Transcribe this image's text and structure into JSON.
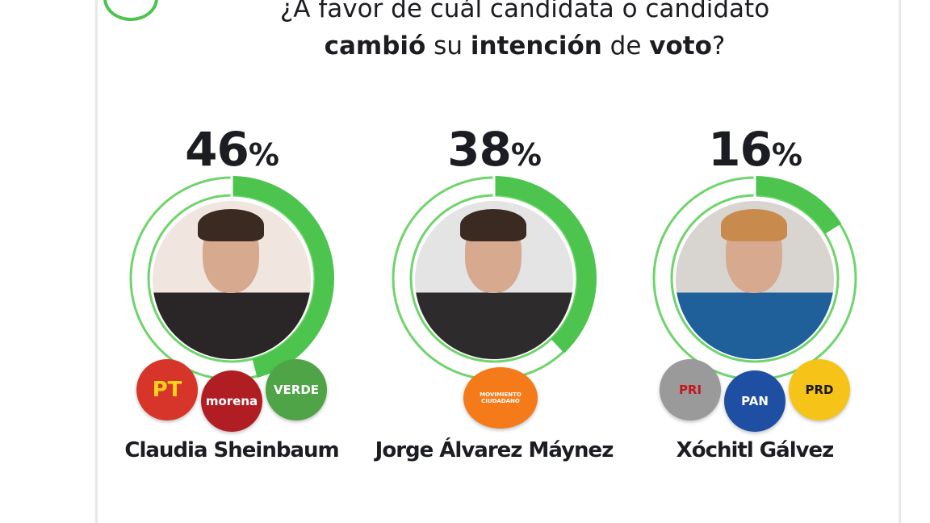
{
  "title": {
    "line1": "¿A favor de cuál candidata o candidato",
    "line2_parts": [
      "cambió",
      " su ",
      "intención",
      " de ",
      "voto",
      "?"
    ]
  },
  "colors": {
    "accent": "#4cc44e",
    "ring_light": "#6fd46b",
    "text": "#1c1d22"
  },
  "chart_data": {
    "type": "pie",
    "title": "¿A favor de cuál candidata o candidato cambió su intención de voto?",
    "categories": [
      "Claudia Sheinbaum",
      "Jorge Álvarez Máynez",
      "Xóchitl Gálvez"
    ],
    "values": [
      46,
      38,
      16
    ],
    "unit": "%"
  },
  "candidates": [
    {
      "name": "Claudia Sheinbaum",
      "value": "46",
      "pct_symbol": "%",
      "logos": [
        {
          "label": "PT",
          "color": "#d8352a",
          "text_color": "#f7d21c"
        },
        {
          "label": "morena",
          "color": "#b01e24",
          "text_color": "#ffffff"
        },
        {
          "label": "VERDE",
          "color": "#4fa447",
          "text_color": "#ffffff"
        }
      ]
    },
    {
      "name": "Jorge Álvarez Máynez",
      "value": "38",
      "pct_symbol": "%",
      "logos": [
        {
          "label": "MOVIMIENTO CIUDADANO",
          "color": "#f47a1a",
          "text_color": "#ffffff"
        }
      ]
    },
    {
      "name": "Xóchitl Gálvez",
      "value": "16",
      "pct_symbol": "%",
      "logos": [
        {
          "label": "PRI",
          "color": "#9a9a9a",
          "text_color": "#c4161c"
        },
        {
          "label": "PAN",
          "color": "#1f4fa3",
          "text_color": "#ffffff"
        },
        {
          "label": "PRD",
          "color": "#f6c418",
          "text_color": "#1a1a1a"
        }
      ]
    }
  ]
}
